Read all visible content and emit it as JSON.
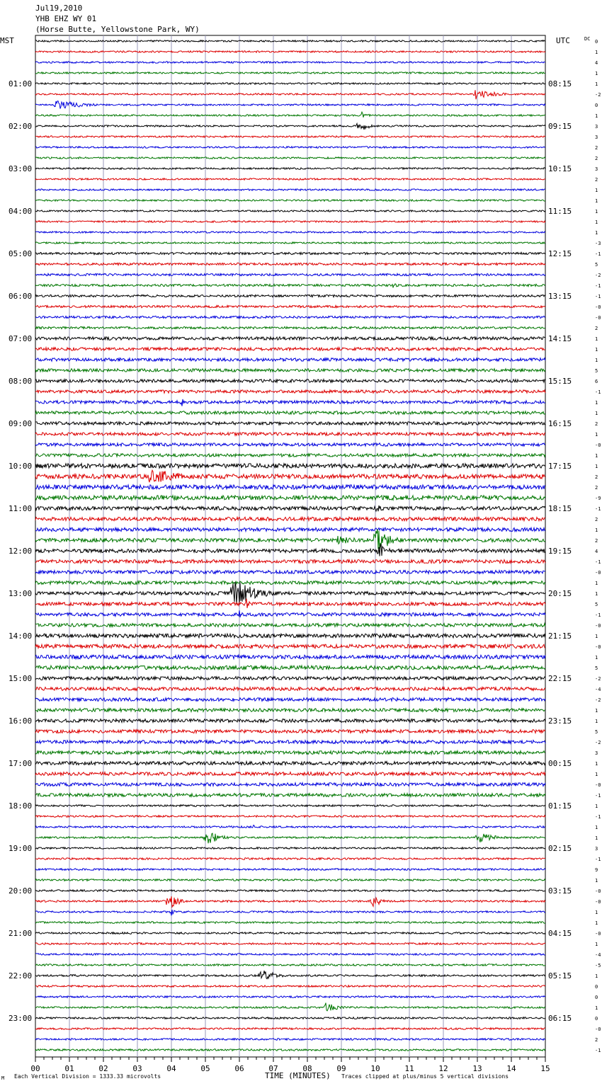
{
  "header": {
    "date": "Jul19,2010",
    "station": "YHB EHZ WY 01",
    "location": "(Horse Butte, Yellowstone Park, WY)"
  },
  "labels": {
    "left_tz": "MST",
    "right_tz": "UTC",
    "dc": "DC",
    "xlabel": "TIME (MINUTES)",
    "scale_note": "Each Vertical Division = 1333.33 microvolts",
    "clip_note": "Traces clipped at plus/minus 5 vertical divisions",
    "corner_mark": "M"
  },
  "colors": {
    "trace_cycle": [
      "#000000",
      "#dd0000",
      "#0000dd",
      "#007700"
    ],
    "grid": "#9999bb"
  },
  "chart_data": {
    "type": "helicorder",
    "minutes_per_line": 15,
    "line_count": 96,
    "xlim": [
      0,
      15
    ],
    "x_ticks": [
      "00",
      "01",
      "02",
      "03",
      "04",
      "05",
      "06",
      "07",
      "08",
      "09",
      "10",
      "11",
      "12",
      "13",
      "14",
      "15"
    ],
    "left_labels": [
      "01:00",
      "02:00",
      "03:00",
      "04:00",
      "05:00",
      "06:00",
      "07:00",
      "08:00",
      "09:00",
      "10:00",
      "11:00",
      "12:00",
      "13:00",
      "14:00",
      "15:00",
      "16:00",
      "17:00",
      "18:00",
      "19:00",
      "20:00",
      "21:00",
      "22:00",
      "23:00"
    ],
    "right_labels": [
      "08:15",
      "09:15",
      "10:15",
      "11:15",
      "12:15",
      "13:15",
      "14:15",
      "15:15",
      "16:15",
      "17:15",
      "18:15",
      "19:15",
      "20:15",
      "21:15",
      "22:15",
      "23:15",
      "00:15",
      "01:15",
      "02:15",
      "03:15",
      "04:15",
      "05:15",
      "06:15"
    ],
    "dc_offsets": [
      "0",
      "1",
      "4",
      "1",
      "1",
      "-2",
      "0",
      "1",
      "3",
      "3",
      "2",
      "2",
      "3",
      "2",
      "1",
      "1",
      "1",
      "1",
      "1",
      "-3",
      "-1",
      "5",
      "-2",
      "-1",
      "-1",
      "-0",
      "-0",
      "2",
      "1",
      "1",
      "1",
      "5",
      "6",
      "-1",
      "1",
      "1",
      "2",
      "1",
      "-0",
      "1",
      "1",
      "2",
      "2",
      "-9",
      "-1",
      "2",
      "1",
      "2",
      "4",
      "-1",
      "-0",
      "1",
      "1",
      "5",
      "-1",
      "-0",
      "1",
      "-0",
      "1",
      "5",
      "-2",
      "-4",
      "-2",
      "1",
      "1",
      "5",
      "-2",
      "3",
      "1",
      "1",
      "-0",
      "-1",
      "1",
      "-1",
      "1",
      "1",
      "3",
      "-1",
      "9",
      "1",
      "-0",
      "-0",
      "1",
      "1",
      "-0",
      "1",
      "-4",
      "-5",
      "1",
      "0",
      "0",
      "1",
      "0",
      "-0",
      "2",
      "-1"
    ],
    "noise_levels": [
      [
        0,
        20,
        1.2
      ],
      [
        20,
        28,
        1.6
      ],
      [
        28,
        40,
        2.2
      ],
      [
        40,
        44,
        3.2
      ],
      [
        44,
        50,
        2.6
      ],
      [
        50,
        56,
        2.4
      ],
      [
        56,
        60,
        2.8
      ],
      [
        60,
        72,
        2.4
      ],
      [
        72,
        96,
        1.3
      ]
    ],
    "events": [
      {
        "line": 2,
        "minute": 10.2,
        "amplitude": 2,
        "duration": 0.2
      },
      {
        "line": 5,
        "minute": 12.9,
        "amplitude": 8,
        "duration": 1.8
      },
      {
        "line": 6,
        "minute": 0.6,
        "amplitude": 7,
        "duration": 2.5
      },
      {
        "line": 7,
        "minute": 8.0,
        "amplitude": 2,
        "duration": 0.6
      },
      {
        "line": 7,
        "minute": 9.6,
        "amplitude": 5,
        "duration": 0.6
      },
      {
        "line": 8,
        "minute": 9.5,
        "amplitude": 10,
        "duration": 0.8
      },
      {
        "line": 14,
        "minute": 11.9,
        "amplitude": 2,
        "duration": 0.2
      },
      {
        "line": 18,
        "minute": 5.0,
        "amplitude": 3,
        "duration": 0.2
      },
      {
        "line": 22,
        "minute": 11.4,
        "amplitude": 2,
        "duration": 0.2
      },
      {
        "line": 23,
        "minute": 10.5,
        "amplitude": 4,
        "duration": 0.6
      },
      {
        "line": 23,
        "minute": 14.3,
        "amplitude": 2,
        "duration": 0.4
      },
      {
        "line": 27,
        "minute": 5.6,
        "amplitude": 3,
        "duration": 0.3
      },
      {
        "line": 30,
        "minute": 2.0,
        "amplitude": 3,
        "duration": 0.6
      },
      {
        "line": 30,
        "minute": 4.3,
        "amplitude": 2,
        "duration": 0.3
      },
      {
        "line": 32,
        "minute": 6.8,
        "amplitude": 2,
        "duration": 0.2
      },
      {
        "line": 34,
        "minute": 4.3,
        "amplitude": 8,
        "duration": 0.2
      },
      {
        "line": 37,
        "minute": 8.4,
        "amplitude": 2,
        "duration": 0.3
      },
      {
        "line": 39,
        "minute": 10.3,
        "amplitude": 2,
        "duration": 0.3
      },
      {
        "line": 41,
        "minute": 3.35,
        "amplitude": 14,
        "duration": 2.5
      },
      {
        "line": 41,
        "minute": 7.3,
        "amplitude": 3,
        "duration": 3.0
      },
      {
        "line": 44,
        "minute": 10.0,
        "amplitude": 9,
        "duration": 0.5
      },
      {
        "line": 47,
        "minute": 8.8,
        "amplitude": 7,
        "duration": 2.2
      },
      {
        "line": 47,
        "minute": 10.0,
        "amplitude": 22,
        "duration": 1.2
      },
      {
        "line": 48,
        "minute": 10.1,
        "amplitude": 12,
        "duration": 0.8
      },
      {
        "line": 52,
        "minute": 5.8,
        "amplitude": 22,
        "duration": 2.0
      },
      {
        "line": 53,
        "minute": 6.2,
        "amplitude": 8,
        "duration": 0.4
      },
      {
        "line": 54,
        "minute": 6.0,
        "amplitude": 6,
        "duration": 0.4
      },
      {
        "line": 55,
        "minute": 6.2,
        "amplitude": 5,
        "duration": 0.3
      },
      {
        "line": 52,
        "minute": 12.2,
        "amplitude": 3,
        "duration": 0.6
      },
      {
        "line": 72,
        "minute": 3.2,
        "amplitude": 3,
        "duration": 0.2
      },
      {
        "line": 74,
        "minute": 6.4,
        "amplitude": 3,
        "duration": 0.5
      },
      {
        "line": 75,
        "minute": 5.0,
        "amplitude": 12,
        "duration": 1.2
      },
      {
        "line": 75,
        "minute": 13.0,
        "amplitude": 8,
        "duration": 1.5
      },
      {
        "line": 81,
        "minute": 3.9,
        "amplitude": 14,
        "duration": 0.8
      },
      {
        "line": 81,
        "minute": 9.9,
        "amplitude": 10,
        "duration": 0.8
      },
      {
        "line": 82,
        "minute": 4.0,
        "amplitude": 8,
        "duration": 0.2
      },
      {
        "line": 83,
        "minute": 5.4,
        "amplitude": 2,
        "duration": 0.3
      },
      {
        "line": 85,
        "minute": 2.4,
        "amplitude": 3,
        "duration": 0.6
      },
      {
        "line": 88,
        "minute": 1.0,
        "amplitude": 2,
        "duration": 2.5
      },
      {
        "line": 88,
        "minute": 6.6,
        "amplitude": 11,
        "duration": 1.2
      },
      {
        "line": 91,
        "minute": 8.5,
        "amplitude": 8,
        "duration": 1.2
      }
    ]
  }
}
